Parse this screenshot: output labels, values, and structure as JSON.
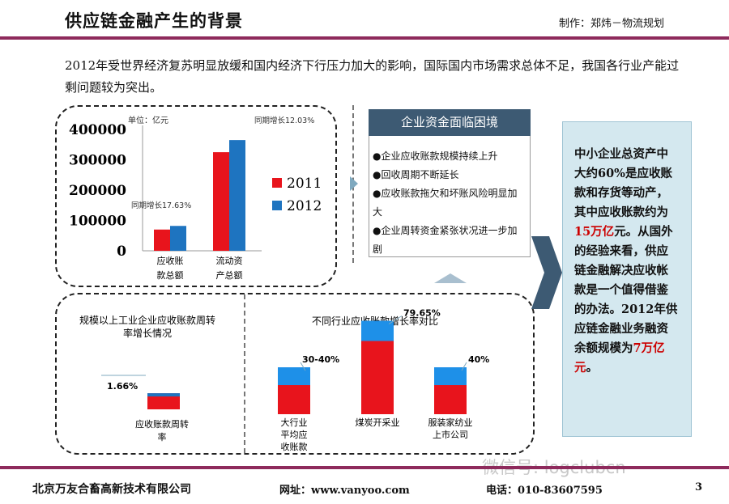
{
  "header": {
    "title": "供应链金融产生的背景",
    "author": "制作：郑炜－物流规划"
  },
  "intro": "2012年受世界经济复苏明显放缓和国内经济下行压力加大的影响，国际国内市场需求总体不足，我国各行业产能过剩问题较为突出。",
  "chart_data": [
    {
      "type": "bar",
      "title": "",
      "unit_label": "单位：亿元",
      "categories": [
        "应收账款总额",
        "流动资产总额"
      ],
      "category_lines": [
        [
          "应收账",
          "款总额"
        ],
        [
          "流动资",
          "产总额"
        ]
      ],
      "series": [
        {
          "name": "2011",
          "color": "#e8141c",
          "values": [
            70000,
            325000
          ]
        },
        {
          "name": "2012",
          "color": "#1e74c0",
          "values": [
            82000,
            365000
          ]
        }
      ],
      "yticks": [
        "400000",
        "300000",
        "200000",
        "100000",
        "0"
      ],
      "ylim": [
        0,
        400000
      ],
      "annotations": [
        "同期增长17.63%",
        "同期增长12.03%"
      ]
    },
    {
      "type": "bar",
      "title": "规模以上工业企业应收账款周转率增长情况",
      "title_lines": [
        "规模以上工业企业应收账款周转",
        "率增长情况"
      ],
      "categories": [
        "应收账款周转率"
      ],
      "category_lines": [
        [
          "应收账款周转",
          "率"
        ]
      ],
      "values": [
        1.66
      ],
      "data_labels": [
        "1.66%"
      ]
    },
    {
      "type": "bar",
      "title": "不同行业应收账款增长率对比",
      "categories": [
        "大行业平均应收账款",
        "煤炭开采业",
        "服装家纺业上市公司"
      ],
      "category_lines": [
        [
          "大行业",
          "平均应",
          "收账款"
        ],
        [
          "煤炭开采业"
        ],
        [
          "服装家纺业",
          "上市公司"
        ]
      ],
      "values": [
        40,
        79.65,
        40
      ],
      "data_labels": [
        "30-40%",
        "79.65%",
        "40%"
      ]
    }
  ],
  "environment": {
    "header": "企业资金面临困境",
    "items": [
      "企业应收账款规模持续上升",
      "回收周期不断延长",
      "应收账款拖欠和坏账风险明显加大",
      "企业周转资金紧张状况进一步加剧"
    ]
  },
  "side": {
    "p1": "中小企业总资产中大约60%是应收账款和存货等动产，其中应收账款约为",
    "h1": "15万亿",
    "p2": "元。从国外的经验来看，供应链金融解决应收帐款是一个值得借鉴的办法。2012年供应链金融业务融资余额规模为",
    "h2": "7万亿元",
    "p3": "。"
  },
  "footer": {
    "company": "北京万友合畜高新技术有限公司",
    "website": "网址：www.vanyoo.com",
    "phone": "电话：010-83607595",
    "page": "3"
  },
  "watermark": "微信号: logclubcn",
  "colors": {
    "accent": "#8e2a5c",
    "red": "#e8141c",
    "blue": "#1e74c0",
    "header_blue": "#3d5a73",
    "side_bg": "#d4e8ef"
  }
}
